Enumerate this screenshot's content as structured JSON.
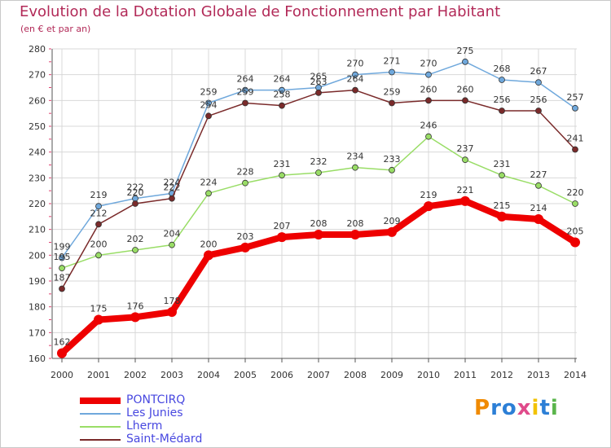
{
  "page": {
    "title": "Evolution de la Dotation Globale de Fonctionnement par Habitant",
    "subtitle": "(en € et par an)",
    "logo": "Proxiti"
  },
  "colors": {
    "title": "#b22a58",
    "grid": "#d8d8d8",
    "axis": "#333333",
    "legend_text": "#4848e0"
  },
  "chart_data": {
    "type": "line",
    "x": [
      2000,
      2001,
      2002,
      2003,
      2004,
      2005,
      2006,
      2007,
      2008,
      2009,
      2010,
      2011,
      2012,
      2013,
      2014
    ],
    "ylim": [
      160,
      280
    ],
    "yticks": [
      160,
      170,
      180,
      190,
      200,
      210,
      220,
      230,
      240,
      250,
      260,
      270,
      280
    ],
    "grid": true,
    "legend_position": "bottom-left",
    "series": [
      {
        "name": "PONTCIRQ",
        "color": "#ee0000",
        "values": [
          162,
          175,
          176,
          178,
          200,
          203,
          207,
          208,
          208,
          209,
          219,
          221,
          215,
          214,
          205
        ]
      },
      {
        "name": "Les Junies",
        "color": "#6fa8dc",
        "values": [
          199,
          219,
          222,
          224,
          259,
          264,
          264,
          265,
          270,
          271,
          270,
          275,
          268,
          267,
          257
        ]
      },
      {
        "name": "Lherm",
        "color": "#99dd66",
        "values": [
          195,
          200,
          202,
          204,
          224,
          228,
          231,
          232,
          234,
          233,
          246,
          237,
          231,
          227,
          220
        ]
      },
      {
        "name": "Saint-Médard",
        "color": "#7a2a2a",
        "values": [
          187,
          212,
          220,
          222,
          254,
          259,
          258,
          263,
          264,
          259,
          260,
          260,
          256,
          256,
          241
        ]
      }
    ]
  }
}
